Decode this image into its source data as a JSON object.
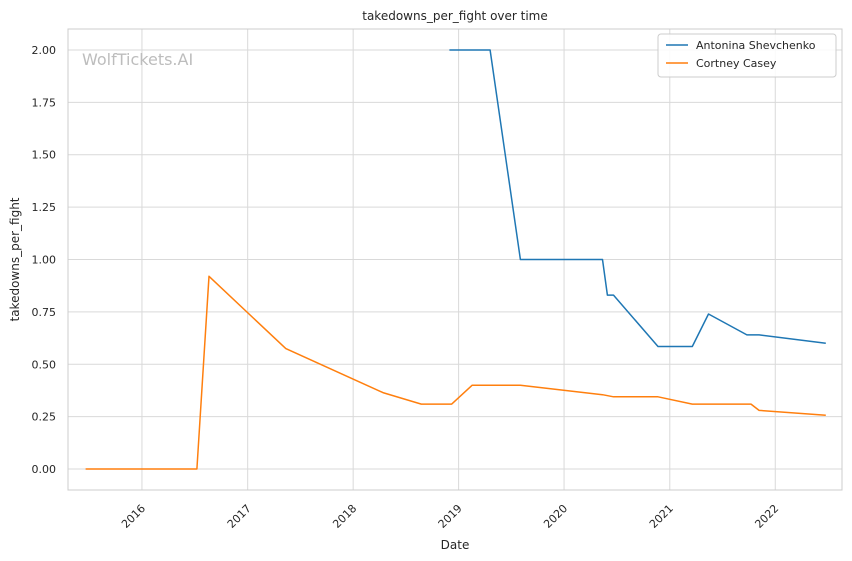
{
  "chart_data": {
    "type": "line",
    "title": "takedowns_per_fight over time",
    "xlabel": "Date",
    "ylabel": "takedowns_per_fight",
    "watermark": "WolfTickets.AI",
    "xlim": [
      "2015-04-20",
      "2022-08-20"
    ],
    "ylim": [
      -0.1,
      2.1
    ],
    "x_ticks": [
      "2016-01-01",
      "2017-01-01",
      "2018-01-01",
      "2019-01-01",
      "2020-01-01",
      "2021-01-01",
      "2022-01-01"
    ],
    "x_tick_labels": [
      "2016",
      "2017",
      "2018",
      "2019",
      "2020",
      "2021",
      "2022"
    ],
    "y_ticks": [
      0.0,
      0.25,
      0.5,
      0.75,
      1.0,
      1.25,
      1.5,
      1.75,
      2.0
    ],
    "y_tick_labels": [
      "0.00",
      "0.25",
      "0.50",
      "0.75",
      "1.00",
      "1.25",
      "1.50",
      "1.75",
      "2.00"
    ],
    "grid": true,
    "legend_position": "top-right",
    "series": [
      {
        "name": "Antonina Shevchenko",
        "color": "#1f77b4",
        "points": [
          [
            "2018-11-30",
            2.0
          ],
          [
            "2019-04-20",
            2.0
          ],
          [
            "2019-08-03",
            1.0
          ],
          [
            "2020-05-13",
            1.0
          ],
          [
            "2020-05-30",
            0.83
          ],
          [
            "2020-06-20",
            0.83
          ],
          [
            "2020-11-21",
            0.585
          ],
          [
            "2021-03-20",
            0.585
          ],
          [
            "2021-05-15",
            0.74
          ],
          [
            "2021-09-25",
            0.64
          ],
          [
            "2021-11-06",
            0.64
          ],
          [
            "2022-06-25",
            0.6
          ]
        ]
      },
      {
        "name": "Cortney Casey",
        "color": "#ff7f0e",
        "points": [
          [
            "2015-06-20",
            0.0
          ],
          [
            "2016-07-09",
            0.0
          ],
          [
            "2016-08-20",
            0.92
          ],
          [
            "2017-05-13",
            0.575
          ],
          [
            "2018-04-14",
            0.365
          ],
          [
            "2018-08-25",
            0.31
          ],
          [
            "2018-12-08",
            0.31
          ],
          [
            "2019-02-17",
            0.4
          ],
          [
            "2019-08-03",
            0.4
          ],
          [
            "2020-05-13",
            0.355
          ],
          [
            "2020-06-20",
            0.345
          ],
          [
            "2020-11-21",
            0.345
          ],
          [
            "2021-03-20",
            0.31
          ],
          [
            "2021-10-09",
            0.31
          ],
          [
            "2021-11-06",
            0.28
          ],
          [
            "2022-06-25",
            0.257
          ]
        ]
      }
    ]
  }
}
